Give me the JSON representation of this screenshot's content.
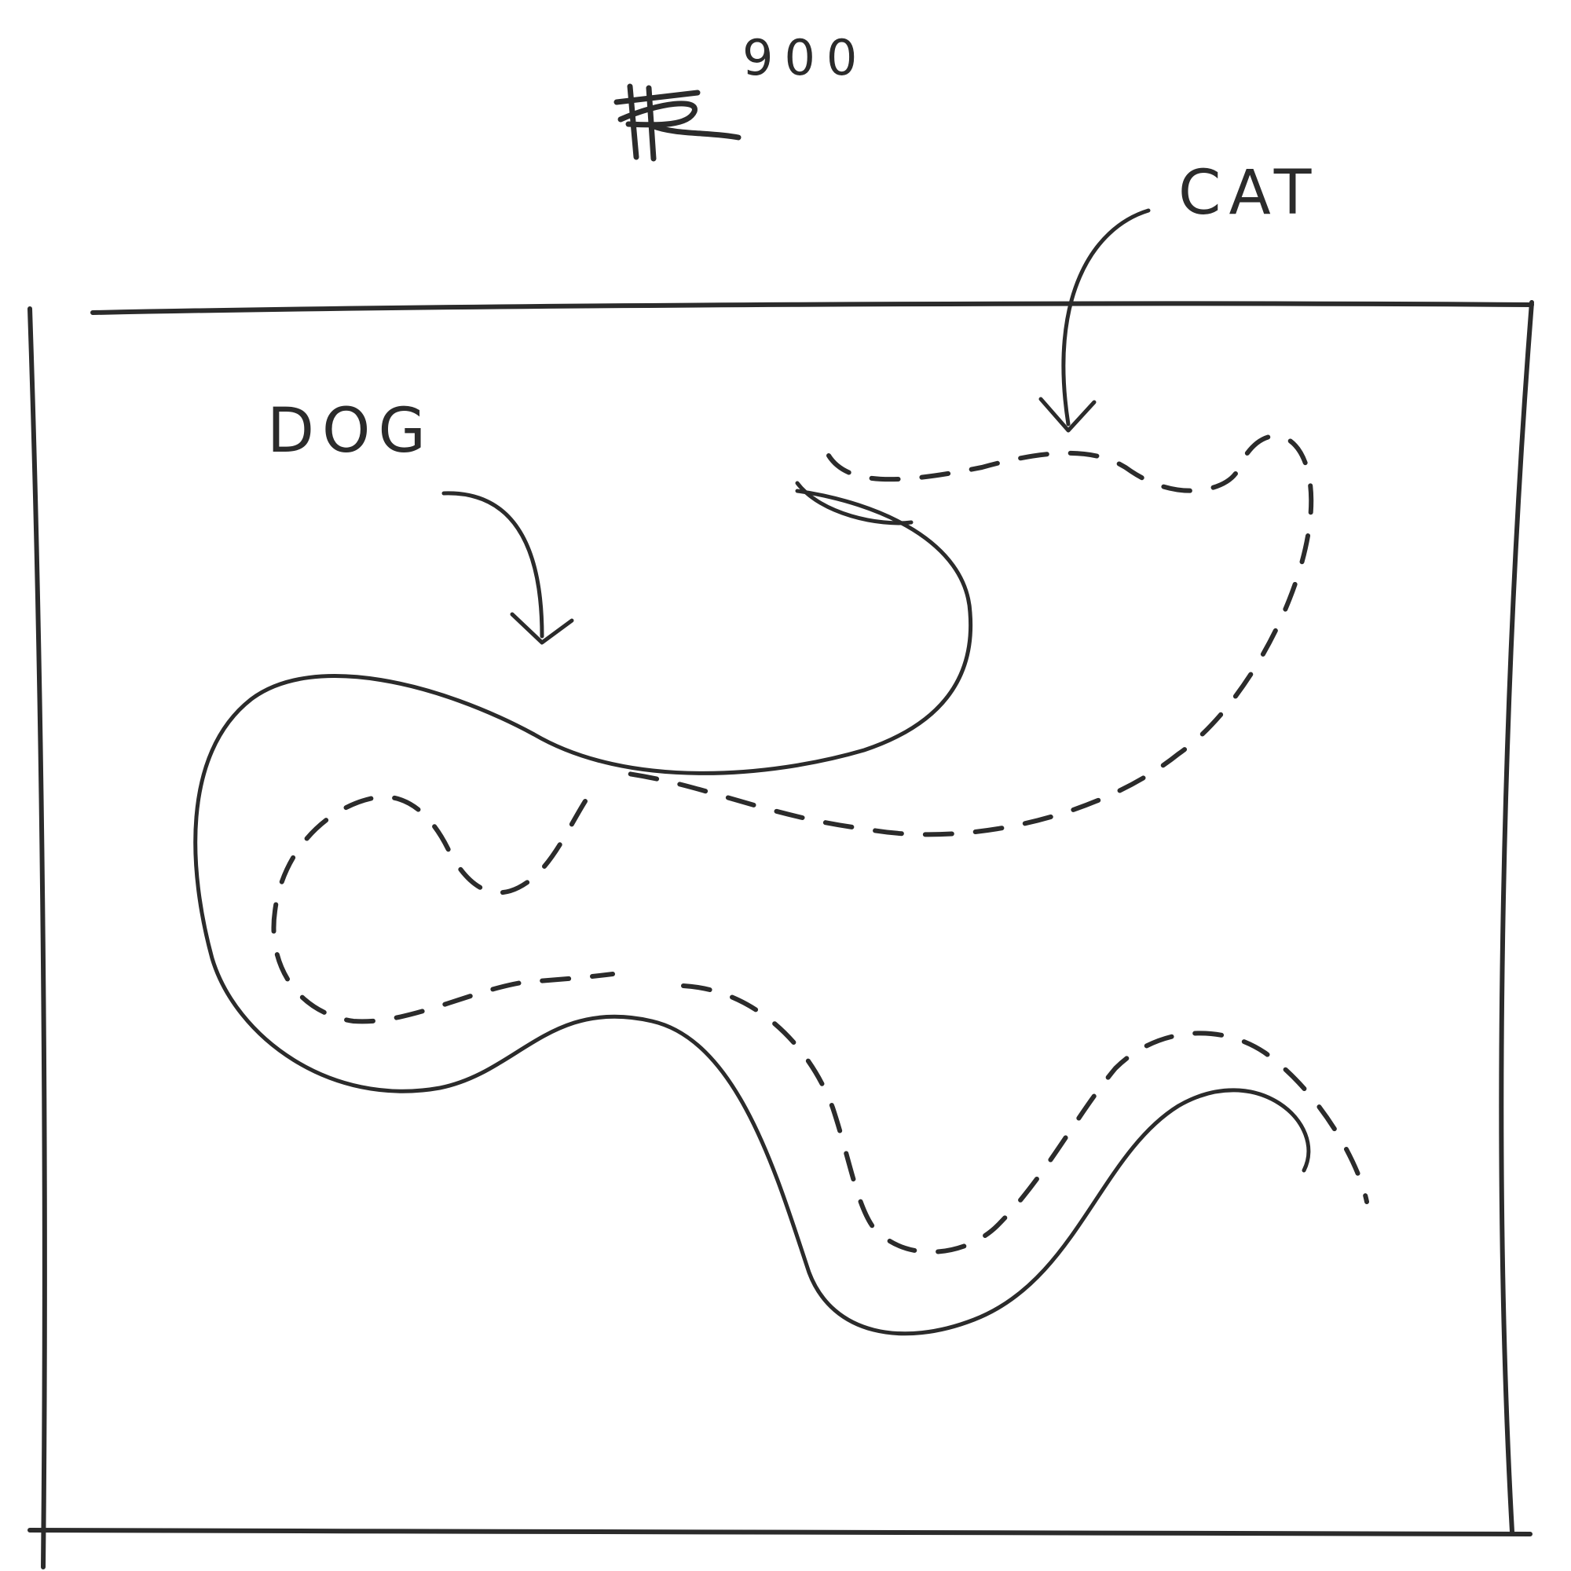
{
  "figure": {
    "superscript": "900",
    "labels": {
      "dog": "DOG",
      "cat": "CAT"
    },
    "ink_color": "#2b2b2b",
    "background_color": "#ffffff"
  }
}
